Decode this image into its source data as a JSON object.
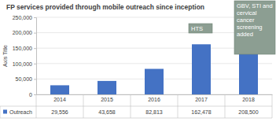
{
  "chart_data": {
    "type": "bar",
    "title": "FP services provided through mobile outreach since inception",
    "y_label": "Axis Title",
    "categories": [
      "2014",
      "2015",
      "2016",
      "2017",
      "2018"
    ],
    "series": [
      {
        "name": "Outreach",
        "color": "#4472c4",
        "values": [
          29556,
          43658,
          82813,
          162478,
          208500
        ],
        "value_labels": [
          "29,556",
          "43,658",
          "82,813",
          "162,478",
          "208,500"
        ]
      }
    ],
    "ylim": [
      0,
      250000
    ],
    "yticks": [
      0,
      {
        "value": 50000,
        "label": "50,000"
      },
      {
        "value": 100000,
        "label": "100,000"
      },
      {
        "value": 150000,
        "label": "150,000"
      },
      {
        "value": 200000,
        "label": "200,000"
      },
      {
        "value": 250000,
        "label": "250,000"
      }
    ],
    "grid": true,
    "annotations": [
      {
        "text": "HTS",
        "category": "2017"
      },
      {
        "text": "GBV, STI and cervical cancer screening added",
        "category": "2018"
      }
    ]
  }
}
